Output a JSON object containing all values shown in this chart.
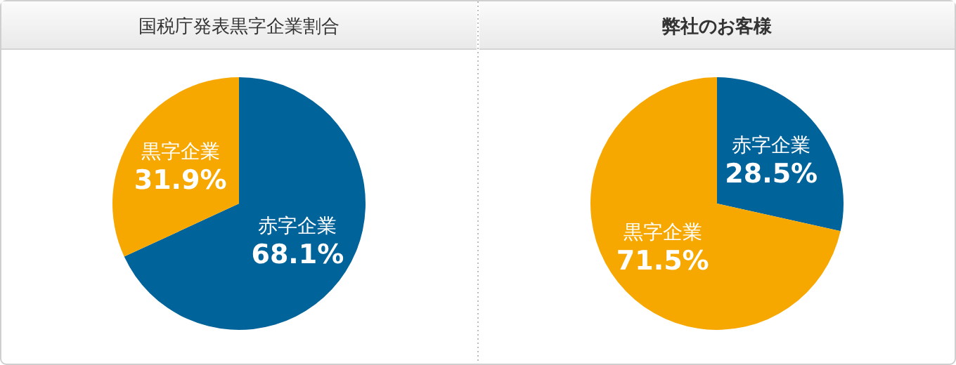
{
  "chart_data": [
    {
      "type": "pie",
      "title": "国税庁発表黒字企業割合",
      "categories": [
        "赤字企業",
        "黒字企業"
      ],
      "values": [
        68.1,
        31.9
      ],
      "colors": [
        "#00639a",
        "#f7a800"
      ],
      "value_labels": [
        "68.1%",
        "31.9%"
      ]
    },
    {
      "type": "pie",
      "title": "弊社のお客様",
      "categories": [
        "赤字企業",
        "黒字企業"
      ],
      "values": [
        28.5,
        71.5
      ],
      "colors": [
        "#00639a",
        "#f7a800"
      ],
      "value_labels": [
        "28.5%",
        "71.5%"
      ]
    }
  ]
}
